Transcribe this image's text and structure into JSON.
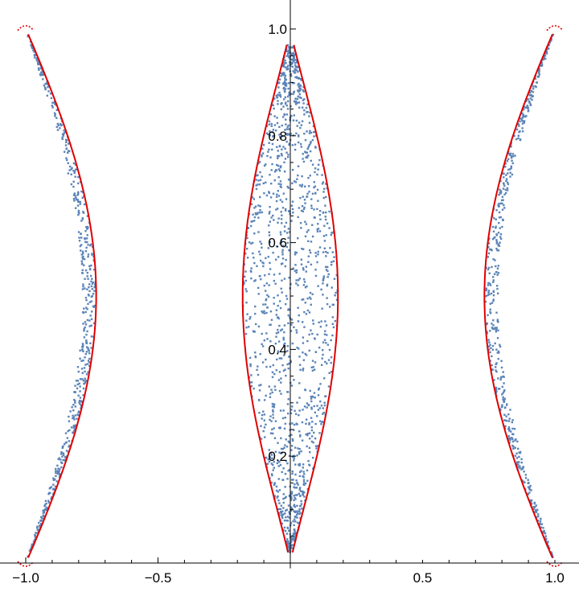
{
  "chart_data": {
    "type": "scatter",
    "title": "",
    "xlabel": "",
    "ylabel": "",
    "xlim": [
      -1.08,
      1.08
    ],
    "ylim": [
      -0.01,
      1.08
    ],
    "grid": false,
    "legend": "none",
    "x_ticks": [
      {
        "value": -1.0,
        "label": "-1.0"
      },
      {
        "value": -0.5,
        "label": "-0.5"
      },
      {
        "value": 0.5,
        "label": "0.5"
      },
      {
        "value": 1.0,
        "label": "1.0"
      }
    ],
    "y_ticks": [
      {
        "value": 0.2,
        "label": "0.2"
      },
      {
        "value": 0.4,
        "label": "0.4"
      },
      {
        "value": 0.6,
        "label": "0.6"
      },
      {
        "value": 0.8,
        "label": "0.8"
      },
      {
        "value": 1.0,
        "label": "1.0"
      }
    ],
    "colors": {
      "scatter": "#5b84b8",
      "boundary": "#e00000"
    },
    "regions": [
      {
        "name": "",
        "x_center": 0.0,
        "half_width_at_mid": 0.18,
        "y_range": [
          0.02,
          0.97
        ]
      },
      {
        "name": "",
        "x_center_at_mid": -0.76,
        "x_at_ends": -1.0,
        "half_width_at_mid": 0.025,
        "y_range": [
          0.0,
          1.0
        ]
      },
      {
        "name": "",
        "x_center_at_mid": 0.76,
        "x_at_ends": 1.0,
        "half_width_at_mid": 0.025,
        "y_range": [
          0.0,
          1.0
        ]
      }
    ],
    "points_per_region": [
      1400,
      520,
      520
    ]
  }
}
